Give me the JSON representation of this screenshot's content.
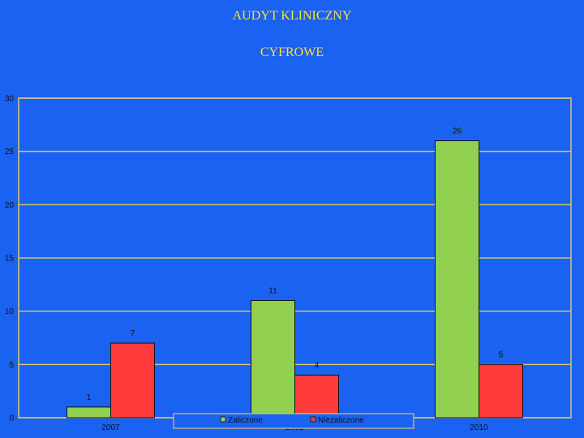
{
  "header": {
    "title": "AUDYT KLINICZNY",
    "subtitle": "CYFROWE"
  },
  "colors": {
    "background": "#1a62f2",
    "title": "#ffe033",
    "axis": "#d9c46a",
    "grid": "#d9c46a"
  },
  "chart_data": {
    "type": "bar",
    "categories": [
      "2007",
      "2008",
      "2010"
    ],
    "series": [
      {
        "name": "Zaliczone",
        "values": [
          1,
          11,
          26
        ],
        "color": "#92d050"
      },
      {
        "name": "Niezaliczone",
        "values": [
          7,
          4,
          5
        ],
        "color": "#ff3b3b"
      }
    ],
    "ylim": [
      0,
      30
    ],
    "yticks": [
      0,
      5,
      10,
      15,
      20,
      25,
      30
    ],
    "grid": true,
    "legend": "bottom-center",
    "data_labels": true
  }
}
